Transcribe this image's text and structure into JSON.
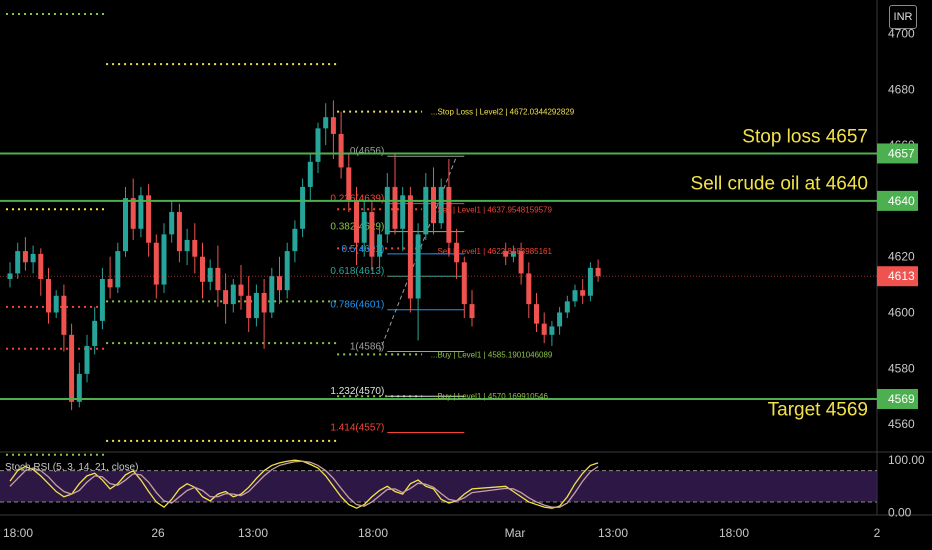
{
  "currency": "INR",
  "chart_data": [
    {
      "type": "candlestick",
      "title": "",
      "ylim": [
        4550,
        4712
      ],
      "y_ticks": [
        4560,
        4580,
        4600,
        4620,
        4640,
        4657,
        4660,
        4680,
        4700
      ],
      "y_tick_labels": [
        "4560",
        "4580",
        "4600",
        "4620",
        "4640",
        "4657",
        "4660",
        "4680",
        "4700"
      ],
      "x_tick_labels": [
        "18:00",
        "26",
        "13:00",
        "18:00",
        "Mar",
        "13:00",
        "18:00",
        "2"
      ],
      "last_price": 4613,
      "candles": [
        {
          "o": 4612,
          "h": 4618,
          "c": 4614,
          "l": 4609,
          "x": 0
        },
        {
          "o": 4614,
          "h": 4625,
          "c": 4622,
          "l": 4612,
          "x": 1
        },
        {
          "o": 4622,
          "h": 4627,
          "c": 4618,
          "l": 4615,
          "x": 2
        },
        {
          "o": 4618,
          "h": 4624,
          "c": 4621,
          "l": 4614,
          "x": 3
        },
        {
          "o": 4621,
          "h": 4623,
          "c": 4612,
          "l": 4606,
          "x": 4
        },
        {
          "o": 4612,
          "h": 4616,
          "c": 4600,
          "l": 4596,
          "x": 5
        },
        {
          "o": 4600,
          "h": 4608,
          "c": 4606,
          "l": 4598,
          "x": 6
        },
        {
          "o": 4606,
          "h": 4610,
          "c": 4592,
          "l": 4586,
          "x": 7
        },
        {
          "o": 4592,
          "h": 4596,
          "c": 4568,
          "l": 4565,
          "x": 8
        },
        {
          "o": 4568,
          "h": 4582,
          "c": 4578,
          "l": 4566,
          "x": 9
        },
        {
          "o": 4578,
          "h": 4592,
          "c": 4588,
          "l": 4575,
          "x": 10
        },
        {
          "o": 4588,
          "h": 4602,
          "c": 4597,
          "l": 4585,
          "x": 11
        },
        {
          "o": 4597,
          "h": 4616,
          "c": 4612,
          "l": 4594,
          "x": 12
        },
        {
          "o": 4612,
          "h": 4620,
          "c": 4609,
          "l": 4605,
          "x": 13
        },
        {
          "o": 4609,
          "h": 4625,
          "c": 4622,
          "l": 4607,
          "x": 14
        },
        {
          "o": 4622,
          "h": 4645,
          "c": 4641,
          "l": 4620,
          "x": 15
        },
        {
          "o": 4641,
          "h": 4648,
          "c": 4630,
          "l": 4626,
          "x": 16
        },
        {
          "o": 4630,
          "h": 4645,
          "c": 4642,
          "l": 4627,
          "x": 17
        },
        {
          "o": 4642,
          "h": 4646,
          "c": 4625,
          "l": 4620,
          "x": 18
        },
        {
          "o": 4625,
          "h": 4628,
          "c": 4610,
          "l": 4605,
          "x": 19
        },
        {
          "o": 4610,
          "h": 4632,
          "c": 4628,
          "l": 4607,
          "x": 20
        },
        {
          "o": 4628,
          "h": 4640,
          "c": 4636,
          "l": 4625,
          "x": 21
        },
        {
          "o": 4636,
          "h": 4639,
          "c": 4622,
          "l": 4618,
          "x": 22
        },
        {
          "o": 4622,
          "h": 4630,
          "c": 4626,
          "l": 4617,
          "x": 23
        },
        {
          "o": 4626,
          "h": 4632,
          "c": 4620,
          "l": 4614,
          "x": 24
        },
        {
          "o": 4620,
          "h": 4625,
          "c": 4611,
          "l": 4605,
          "x": 25
        },
        {
          "o": 4611,
          "h": 4619,
          "c": 4616,
          "l": 4608,
          "x": 26
        },
        {
          "o": 4616,
          "h": 4624,
          "c": 4608,
          "l": 4602,
          "x": 27
        },
        {
          "o": 4608,
          "h": 4614,
          "c": 4603,
          "l": 4596,
          "x": 28
        },
        {
          "o": 4603,
          "h": 4612,
          "c": 4610,
          "l": 4600,
          "x": 29
        },
        {
          "o": 4610,
          "h": 4617,
          "c": 4606,
          "l": 4601,
          "x": 30
        },
        {
          "o": 4606,
          "h": 4613,
          "c": 4598,
          "l": 4593,
          "x": 31
        },
        {
          "o": 4598,
          "h": 4610,
          "c": 4607,
          "l": 4595,
          "x": 32
        },
        {
          "o": 4607,
          "h": 4612,
          "c": 4600,
          "l": 4587,
          "x": 33
        },
        {
          "o": 4600,
          "h": 4616,
          "c": 4613,
          "l": 4598,
          "x": 34
        },
        {
          "o": 4613,
          "h": 4620,
          "c": 4608,
          "l": 4603,
          "x": 35
        },
        {
          "o": 4608,
          "h": 4625,
          "c": 4622,
          "l": 4605,
          "x": 36
        },
        {
          "o": 4622,
          "h": 4633,
          "c": 4630,
          "l": 4618,
          "x": 37
        },
        {
          "o": 4630,
          "h": 4648,
          "c": 4645,
          "l": 4627,
          "x": 38
        },
        {
          "o": 4645,
          "h": 4657,
          "c": 4654,
          "l": 4640,
          "x": 39
        },
        {
          "o": 4654,
          "h": 4668,
          "c": 4666,
          "l": 4650,
          "x": 40
        },
        {
          "o": 4666,
          "h": 4675,
          "c": 4670,
          "l": 4660,
          "x": 41
        },
        {
          "o": 4670,
          "h": 4676,
          "c": 4664,
          "l": 4655,
          "x": 42
        },
        {
          "o": 4664,
          "h": 4672,
          "c": 4652,
          "l": 4648,
          "x": 43
        },
        {
          "o": 4652,
          "h": 4657,
          "c": 4640,
          "l": 4636,
          "x": 44
        },
        {
          "o": 4640,
          "h": 4645,
          "c": 4625,
          "l": 4617,
          "x": 45
        },
        {
          "o": 4625,
          "h": 4640,
          "c": 4636,
          "l": 4620,
          "x": 46
        },
        {
          "o": 4636,
          "h": 4640,
          "c": 4620,
          "l": 4615,
          "x": 47
        },
        {
          "o": 4620,
          "h": 4632,
          "c": 4628,
          "l": 4616,
          "x": 48
        },
        {
          "o": 4628,
          "h": 4650,
          "c": 4645,
          "l": 4625,
          "x": 49
        },
        {
          "o": 4645,
          "h": 4657,
          "c": 4630,
          "l": 4628,
          "x": 50
        },
        {
          "o": 4630,
          "h": 4645,
          "c": 4642,
          "l": 4622,
          "x": 51
        },
        {
          "o": 4642,
          "h": 4645,
          "c": 4605,
          "l": 4600,
          "x": 52
        },
        {
          "o": 4605,
          "h": 4632,
          "c": 4628,
          "l": 4590,
          "x": 53
        },
        {
          "o": 4628,
          "h": 4650,
          "c": 4645,
          "l": 4626,
          "x": 54
        },
        {
          "o": 4645,
          "h": 4652,
          "c": 4632,
          "l": 4628,
          "x": 55
        },
        {
          "o": 4632,
          "h": 4648,
          "c": 4645,
          "l": 4630,
          "x": 56
        },
        {
          "o": 4645,
          "h": 4655,
          "c": 4625,
          "l": 4620,
          "x": 57
        },
        {
          "o": 4625,
          "h": 4630,
          "c": 4618,
          "l": 4612,
          "x": 58
        },
        {
          "o": 4618,
          "h": 4620,
          "c": 4603,
          "l": 4598,
          "x": 59
        },
        {
          "o": 4603,
          "h": 4608,
          "c": 4598,
          "l": 4595,
          "x": 60
        },
        {
          "o": 4622,
          "h": 4625,
          "c": 4620,
          "l": 4617,
          "x": 61
        },
        {
          "o": 4620,
          "h": 4624,
          "c": 4622,
          "l": 4618,
          "x": 62
        },
        {
          "o": 4622,
          "h": 4625,
          "c": 4614,
          "l": 4610,
          "x": 63
        },
        {
          "o": 4614,
          "h": 4618,
          "c": 4603,
          "l": 4598,
          "x": 64
        },
        {
          "o": 4603,
          "h": 4607,
          "c": 4596,
          "l": 4593,
          "x": 65
        },
        {
          "o": 4596,
          "h": 4600,
          "c": 4592,
          "l": 4589,
          "x": 66
        },
        {
          "o": 4592,
          "h": 4597,
          "c": 4595,
          "l": 4588,
          "x": 67
        },
        {
          "o": 4595,
          "h": 4602,
          "c": 4600,
          "l": 4592,
          "x": 68
        },
        {
          "o": 4600,
          "h": 4606,
          "c": 4604,
          "l": 4598,
          "x": 69
        },
        {
          "o": 4604,
          "h": 4610,
          "c": 4608,
          "l": 4602,
          "x": 70
        },
        {
          "o": 4608,
          "h": 4612,
          "c": 4606,
          "l": 4603,
          "x": 71
        },
        {
          "o": 4606,
          "h": 4618,
          "c": 4616,
          "l": 4604,
          "x": 72
        },
        {
          "o": 4616,
          "h": 4619,
          "c": 4613,
          "l": 4611,
          "x": 73
        }
      ],
      "horizontal_lines": [
        {
          "price": 4657,
          "color": "#4caf50",
          "label": "4657"
        },
        {
          "price": 4640,
          "color": "#4caf50",
          "label": "4640"
        },
        {
          "price": 4569,
          "color": "#4caf50",
          "label": "4569"
        }
      ],
      "dotted_levels": [
        {
          "price": 4707,
          "x0": 0,
          "x1": 12,
          "color": "#8bc34a"
        },
        {
          "price": 4689,
          "x0": 13,
          "x1": 42,
          "color": "#f2e24a"
        },
        {
          "price": 4672,
          "x0": 43,
          "x1": 53,
          "color": "#f2e24a"
        },
        {
          "price": 4637,
          "x0": 0,
          "x1": 12,
          "color": "#f2e24a"
        },
        {
          "price": 4637,
          "x0": 43,
          "x1": 53,
          "color": "#f44336"
        },
        {
          "price": 4623,
          "x0": 43,
          "x1": 53,
          "color": "#f44336"
        },
        {
          "price": 4602,
          "x0": 0,
          "x1": 12,
          "color": "#f44336"
        },
        {
          "price": 4604,
          "x0": 13,
          "x1": 42,
          "color": "#8bc34a"
        },
        {
          "price": 4587,
          "x0": 0,
          "x1": 12,
          "color": "#f44336"
        },
        {
          "price": 4589,
          "x0": 13,
          "x1": 42,
          "color": "#8bc34a"
        },
        {
          "price": 4585,
          "x0": 43,
          "x1": 53,
          "color": "#8bc34a"
        },
        {
          "price": 4570,
          "x0": 43,
          "x1": 53,
          "color": "#8bc34a"
        },
        {
          "price": 4554,
          "x0": 13,
          "x1": 42,
          "color": "#f2e24a"
        },
        {
          "price": 4549,
          "x0": 0,
          "x1": 12,
          "color": "#8bc34a"
        }
      ],
      "fib_levels": [
        {
          "label": "0(4656)",
          "price": 4656,
          "color": "#9e9e9e"
        },
        {
          "label": "0.236(4639)",
          "price": 4639,
          "color": "#f44336"
        },
        {
          "label": "0.382(4629)",
          "price": 4629,
          "color": "#8bc34a"
        },
        {
          "label": "0.5(4621)",
          "price": 4621,
          "color": "#2196f3"
        },
        {
          "label": "0.618(4613)",
          "price": 4613,
          "color": "#26a69a"
        },
        {
          "label": "0.786(4601)",
          "price": 4601,
          "color": "#2196f3"
        },
        {
          "label": "1(4586)",
          "price": 4586,
          "color": "#9e9e9e"
        },
        {
          "label": "1.232(4570)",
          "price": 4570,
          "color": "#e0e0e0"
        },
        {
          "label": "1.414(4557)",
          "price": 4557,
          "color": "#f44336"
        }
      ],
      "annotations": [
        {
          "text": "Stop loss 4657",
          "price": 4661
        },
        {
          "text": "Sell crude oil at 4640",
          "price": 4644
        },
        {
          "text": "Target 4569",
          "price": 4563
        }
      ],
      "level_labels": [
        {
          "text": "...Stop Loss | Level2 | 4672.0344292829",
          "price": 4672,
          "color": "#f2e24a"
        },
        {
          "text": "...Sell | Level1 | 4637.9548159579",
          "price": 4637,
          "color": "#f44336"
        },
        {
          "text": "...Sell | Level1 | 4622.8483985161",
          "price": 4622,
          "color": "#f44336"
        },
        {
          "text": "...Buy | Level1 | 4585.1901046089",
          "price": 4585,
          "color": "#8bc34a"
        },
        {
          "text": "...Buy | Level1 | 4570.169910546",
          "price": 4570,
          "color": "#8bc34a"
        }
      ]
    },
    {
      "type": "line",
      "title": "Stoch RSI (5, 3, 14, 21, close)",
      "ylim": [
        -5,
        110
      ],
      "y_ticks": [
        0,
        100
      ],
      "y_tick_labels": [
        "0.00",
        "100.00"
      ],
      "bands": [
        20,
        80
      ],
      "series": [
        {
          "color": "#f2e24a",
          "values": [
            60,
            80,
            88,
            82,
            70,
            55,
            40,
            30,
            35,
            55,
            70,
            75,
            62,
            45,
            55,
            72,
            80,
            62,
            40,
            20,
            10,
            25,
            45,
            55,
            48,
            30,
            22,
            35,
            40,
            30,
            35,
            48,
            65,
            80,
            90,
            95,
            98,
            100,
            98,
            92,
            85,
            70,
            50,
            30,
            15,
            8,
            15,
            30,
            42,
            50,
            40,
            35,
            55,
            62,
            50,
            45,
            25,
            18,
            22,
            35,
            45,
            50,
            40,
            30,
            20,
            15,
            10,
            8,
            12,
            30,
            55,
            75,
            90,
            95
          ]
        },
        {
          "color": "#c8a0a0",
          "values": [
            50,
            65,
            80,
            85,
            80,
            68,
            52,
            40,
            35,
            42,
            58,
            70,
            68,
            55,
            52,
            62,
            74,
            72,
            58,
            38,
            22,
            18,
            30,
            42,
            48,
            42,
            30,
            30,
            36,
            35,
            32,
            40,
            55,
            70,
            82,
            90,
            94,
            97,
            98,
            96,
            90,
            80,
            65,
            46,
            28,
            15,
            12,
            20,
            32,
            44,
            45,
            38,
            46,
            56,
            54,
            48,
            36,
            25,
            22,
            28,
            38,
            46,
            45,
            38,
            28,
            20,
            14,
            10,
            10,
            18,
            38,
            60,
            78,
            88
          ]
        }
      ]
    }
  ]
}
